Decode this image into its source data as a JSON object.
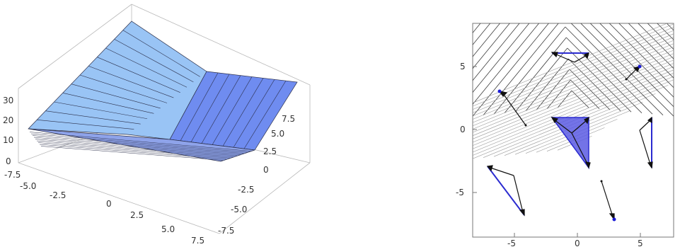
{
  "surface_plot": {
    "x_ticks": [
      "-7.5",
      "-5.0",
      "-2.5",
      "0",
      "2.5",
      "5.0",
      "7.5"
    ],
    "y_ticks": [
      "7.5",
      "5.0",
      "2.5",
      "0",
      "-2.5",
      "-5.0",
      "-7.5"
    ],
    "z_ticks": [
      "0",
      "10",
      "20",
      "30"
    ],
    "colors": {
      "light_face": "#99c4f5",
      "dark_face": "#6f8cf0",
      "base_face": "#8ea3ea",
      "edge": "#2b2f4a"
    }
  },
  "contour_plot": {
    "x_ticks": [
      "-5",
      "0",
      "5"
    ],
    "y_ticks": [
      "5",
      "0",
      "-5"
    ],
    "colors": {
      "frame": "#777777",
      "contour": "#3c3c3c",
      "contour_light": "#9a9a9a",
      "triangle": "#2b2bd0",
      "triangle_fill": "#5b5be3",
      "arrow": "#111111",
      "dot": "#1a1ad6"
    }
  }
}
